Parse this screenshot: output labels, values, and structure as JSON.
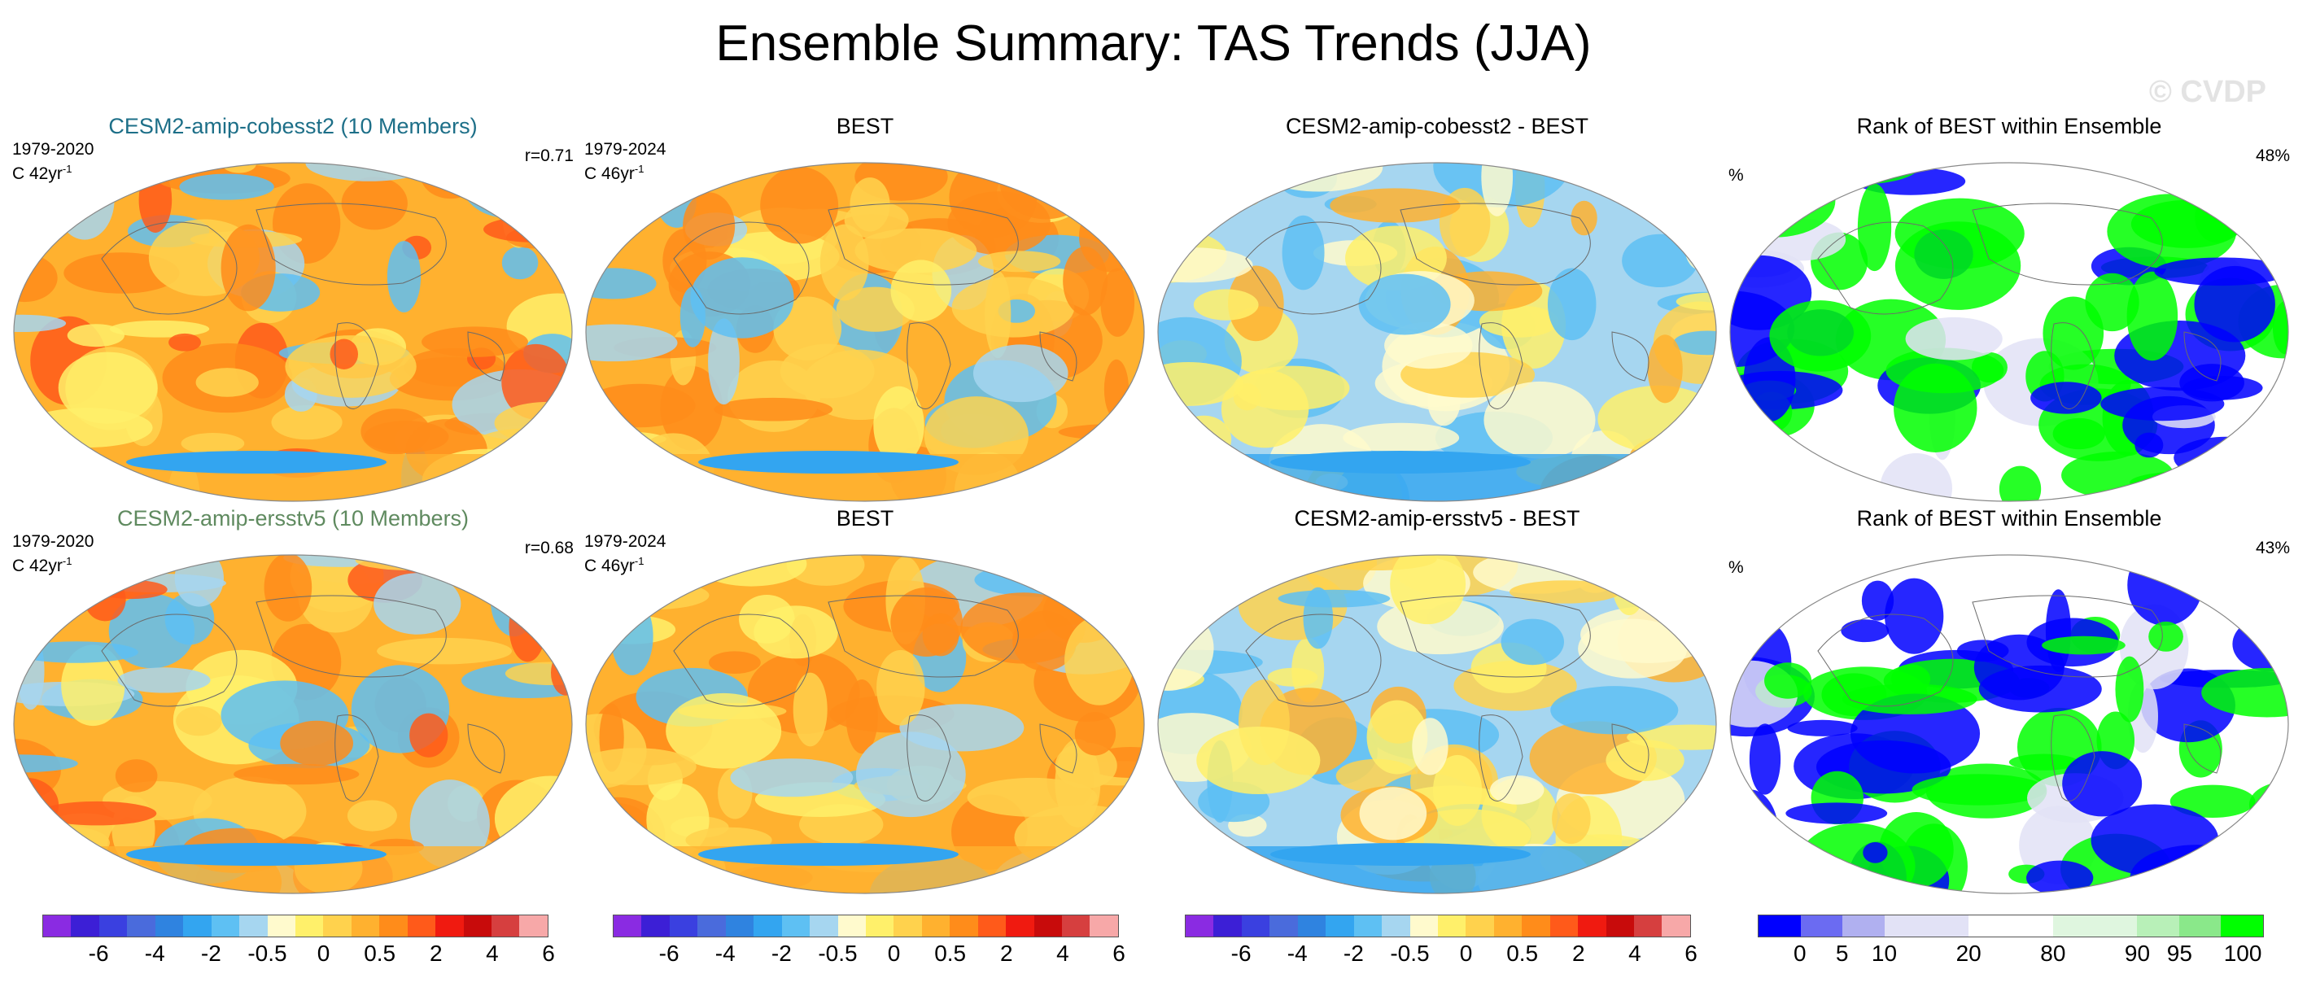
{
  "figure": {
    "title": "Ensemble Summary: TAS Trends (JJA)",
    "watermark": "© CVDP"
  },
  "rows": [
    {
      "panels": [
        {
          "title": "CESM2-amip-cobesst2 (10 Members)",
          "title_color": "#1d6f88",
          "period": "1979-2020",
          "units": "C 42yr",
          "units_sup": "-1",
          "corr": "r=0.71",
          "kind": "model"
        },
        {
          "title": "BEST",
          "title_color": "#000000",
          "period": "1979-2024",
          "units": "C 46yr",
          "units_sup": "-1",
          "corr": "",
          "kind": "obs"
        },
        {
          "title": "CESM2-amip-cobesst2 - BEST",
          "title_color": "#000000",
          "period": "",
          "units": "",
          "units_sup": "",
          "corr": "",
          "kind": "diff"
        },
        {
          "title": "Rank of BEST within Ensemble",
          "title_color": "#000000",
          "period": "",
          "units": "%",
          "units_sup": "",
          "corr": "48%",
          "kind": "rank"
        }
      ]
    },
    {
      "panels": [
        {
          "title": "CESM2-amip-ersstv5 (10 Members)",
          "title_color": "#5f8a5f",
          "period": "1979-2020",
          "units": "C 42yr",
          "units_sup": "-1",
          "corr": "r=0.68",
          "kind": "model"
        },
        {
          "title": "BEST",
          "title_color": "#000000",
          "period": "1979-2024",
          "units": "C 46yr",
          "units_sup": "-1",
          "corr": "",
          "kind": "obs"
        },
        {
          "title": "CESM2-amip-ersstv5 - BEST",
          "title_color": "#000000",
          "period": "",
          "units": "",
          "units_sup": "",
          "corr": "",
          "kind": "diff"
        },
        {
          "title": "Rank of BEST within Ensemble",
          "title_color": "#000000",
          "period": "",
          "units": "%",
          "units_sup": "",
          "corr": "43%",
          "kind": "rank"
        }
      ]
    }
  ],
  "colorbars": [
    {
      "colors": [
        "#8a2be2",
        "#3c1fd6",
        "#3a40e0",
        "#4a6bdc",
        "#2f83e0",
        "#33a5f0",
        "#5ec0f3",
        "#a6d6f0",
        "#fffacd",
        "#fff06a",
        "#ffd24d",
        "#ffb12f",
        "#ff8c1a",
        "#ff5a1a",
        "#f01a10",
        "#c80b0b",
        "#d63f3f",
        "#f7a8a8"
      ],
      "labels": [
        "-6",
        "-4",
        "-2",
        "-0.5",
        "0",
        "0.5",
        "2",
        "4",
        "6"
      ]
    },
    {
      "colors": [
        "#8a2be2",
        "#3c1fd6",
        "#3a40e0",
        "#4a6bdc",
        "#2f83e0",
        "#33a5f0",
        "#5ec0f3",
        "#a6d6f0",
        "#fffacd",
        "#fff06a",
        "#ffd24d",
        "#ffb12f",
        "#ff8c1a",
        "#ff5a1a",
        "#f01a10",
        "#c80b0b",
        "#d63f3f",
        "#f7a8a8"
      ],
      "labels": [
        "-6",
        "-4",
        "-2",
        "-0.5",
        "0",
        "0.5",
        "2",
        "4",
        "6"
      ]
    },
    {
      "colors": [
        "#8a2be2",
        "#3c1fd6",
        "#3a40e0",
        "#4a6bdc",
        "#2f83e0",
        "#33a5f0",
        "#5ec0f3",
        "#a6d6f0",
        "#fffacd",
        "#fff06a",
        "#ffd24d",
        "#ffb12f",
        "#ff8c1a",
        "#ff5a1a",
        "#f01a10",
        "#c80b0b",
        "#d63f3f",
        "#f7a8a8"
      ],
      "labels": [
        "-6",
        "-4",
        "-2",
        "-0.5",
        "0",
        "0.5",
        "2",
        "4",
        "6"
      ]
    },
    {
      "colors": [
        "#0000ff",
        "#6b6bf2",
        "#b0b0f0",
        "#e2e2f6",
        "#e2e2f6",
        "#ffffff",
        "#ffffff",
        "#dff6df",
        "#dff6df",
        "#b8f0b8",
        "#8ae88a",
        "#00ff00"
      ],
      "labels": [
        "0",
        "5",
        "10",
        "20",
        "80",
        "90",
        "95",
        "100"
      ]
    }
  ]
}
